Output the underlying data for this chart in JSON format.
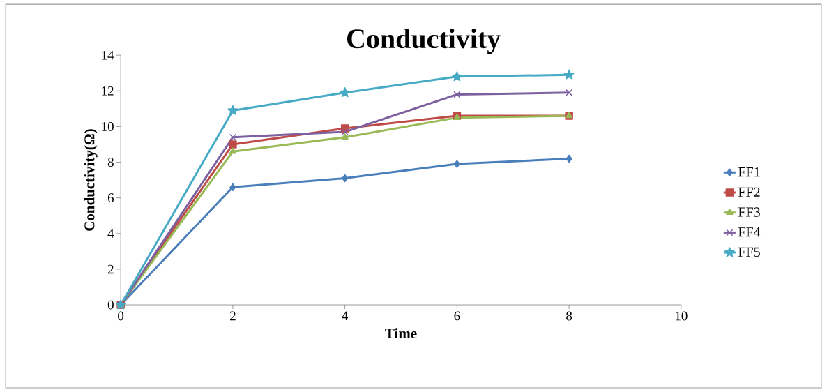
{
  "chart_data": {
    "type": "line",
    "title": "Conductivity",
    "xlabel": "Time",
    "ylabel": "Conductivity(Ω)",
    "x": [
      0,
      2,
      4,
      6,
      8
    ],
    "series": [
      {
        "name": "FF1",
        "color": "#4a7ebb",
        "marker": "diamond",
        "values": [
          0,
          6.6,
          7.1,
          7.9,
          8.2
        ]
      },
      {
        "name": "FF2",
        "color": "#be4b48",
        "marker": "square",
        "values": [
          0,
          9.0,
          9.9,
          10.6,
          10.6
        ]
      },
      {
        "name": "FF3",
        "color": "#98b954",
        "marker": "triangle",
        "values": [
          0,
          8.6,
          9.4,
          10.5,
          10.6
        ]
      },
      {
        "name": "FF4",
        "color": "#7d60a0",
        "marker": "cross",
        "values": [
          0,
          9.4,
          9.7,
          11.8,
          11.9
        ]
      },
      {
        "name": "FF5",
        "color": "#46aac5",
        "marker": "star",
        "values": [
          0,
          10.9,
          11.9,
          12.8,
          12.9
        ]
      }
    ],
    "xlim": [
      0,
      10
    ],
    "xticks": [
      0,
      2,
      4,
      6,
      8,
      10
    ],
    "ylim": [
      0,
      14
    ],
    "yticks": [
      0,
      2,
      4,
      6,
      8,
      10,
      12,
      14
    ],
    "grid": false,
    "legend": "right",
    "line_style": "solid"
  }
}
